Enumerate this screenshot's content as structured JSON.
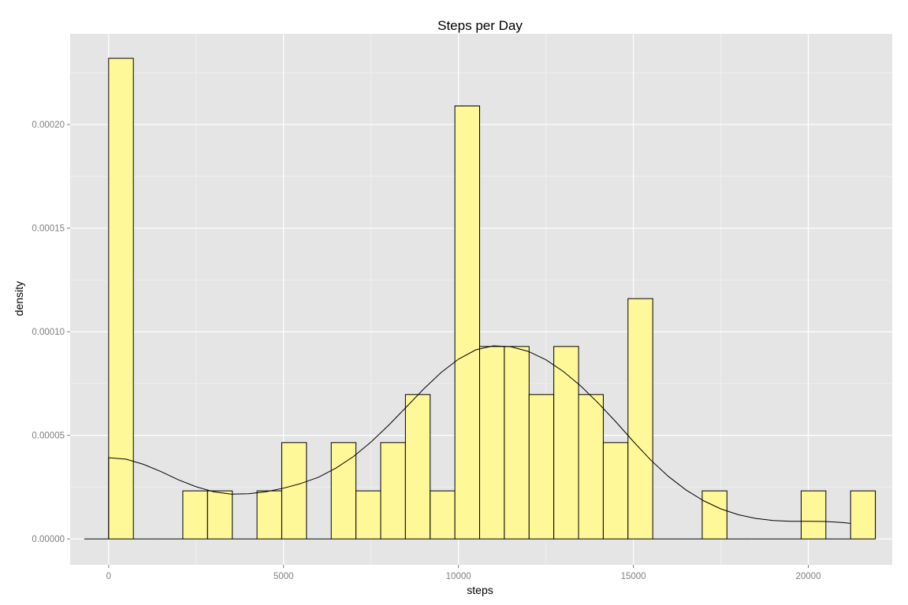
{
  "chart_data": {
    "type": "bar",
    "title": "Steps per Day",
    "xlabel": "steps",
    "ylabel": "density",
    "xlim": [
      -1100,
      22400
    ],
    "ylim": [
      -1.25e-05,
      0.0002438
    ],
    "x_ticks": [
      0,
      5000,
      10000,
      15000,
      20000
    ],
    "x_tick_labels": [
      "0",
      "5000",
      "10000",
      "15000",
      "20000"
    ],
    "y_ticks": [
      0,
      5e-05,
      0.0001,
      0.00015,
      0.0002
    ],
    "y_tick_labels": [
      "0.00000",
      "0.00005",
      "0.00010",
      "0.00015",
      "0.00020"
    ],
    "grid": true,
    "bin_width": 707,
    "series": [
      {
        "kind": "histogram",
        "bins": [
          {
            "x0": 0,
            "x1": 707,
            "density": 0.000232
          },
          {
            "x0": 707,
            "x1": 1414,
            "density": 0
          },
          {
            "x0": 1414,
            "x1": 2121,
            "density": 0
          },
          {
            "x0": 2121,
            "x1": 2828,
            "density": 2.32e-05
          },
          {
            "x0": 2828,
            "x1": 3535,
            "density": 2.32e-05
          },
          {
            "x0": 3535,
            "x1": 4242,
            "density": 0
          },
          {
            "x0": 4242,
            "x1": 4949,
            "density": 2.32e-05
          },
          {
            "x0": 4949,
            "x1": 5656,
            "density": 4.65e-05
          },
          {
            "x0": 5656,
            "x1": 6363,
            "density": 0
          },
          {
            "x0": 6363,
            "x1": 7070,
            "density": 4.65e-05
          },
          {
            "x0": 7070,
            "x1": 7777,
            "density": 2.32e-05
          },
          {
            "x0": 7777,
            "x1": 8484,
            "density": 4.65e-05
          },
          {
            "x0": 8484,
            "x1": 9191,
            "density": 6.97e-05
          },
          {
            "x0": 9191,
            "x1": 9898,
            "density": 2.32e-05
          },
          {
            "x0": 9898,
            "x1": 10605,
            "density": 0.000209
          },
          {
            "x0": 10605,
            "x1": 11312,
            "density": 9.29e-05
          },
          {
            "x0": 11312,
            "x1": 12019,
            "density": 9.29e-05
          },
          {
            "x0": 12019,
            "x1": 12726,
            "density": 6.97e-05
          },
          {
            "x0": 12726,
            "x1": 13433,
            "density": 9.29e-05
          },
          {
            "x0": 13433,
            "x1": 14140,
            "density": 6.97e-05
          },
          {
            "x0": 14140,
            "x1": 14847,
            "density": 4.65e-05
          },
          {
            "x0": 14847,
            "x1": 15554,
            "density": 0.000116
          },
          {
            "x0": 15554,
            "x1": 16261,
            "density": 0
          },
          {
            "x0": 16261,
            "x1": 16968,
            "density": 0
          },
          {
            "x0": 16968,
            "x1": 17675,
            "density": 2.32e-05
          },
          {
            "x0": 17675,
            "x1": 18382,
            "density": 0
          },
          {
            "x0": 18382,
            "x1": 19089,
            "density": 0
          },
          {
            "x0": 19089,
            "x1": 19796,
            "density": 0
          },
          {
            "x0": 19796,
            "x1": 20503,
            "density": 2.32e-05
          },
          {
            "x0": 20503,
            "x1": 21210,
            "density": 0
          },
          {
            "x0": 21210,
            "x1": 21917,
            "density": 2.32e-05
          }
        ]
      },
      {
        "kind": "density",
        "points": [
          [
            -700,
            0
          ],
          [
            0,
            0
          ],
          [
            0,
            3.92e-05
          ],
          [
            500,
            3.85e-05
          ],
          [
            1000,
            3.6e-05
          ],
          [
            1500,
            3.25e-05
          ],
          [
            2000,
            2.85e-05
          ],
          [
            2500,
            2.52e-05
          ],
          [
            3000,
            2.28e-05
          ],
          [
            3500,
            2.16e-05
          ],
          [
            4000,
            2.18e-05
          ],
          [
            4500,
            2.28e-05
          ],
          [
            5000,
            2.45e-05
          ],
          [
            5500,
            2.68e-05
          ],
          [
            6000,
            2.98e-05
          ],
          [
            6500,
            3.42e-05
          ],
          [
            7000,
            3.98e-05
          ],
          [
            7500,
            4.68e-05
          ],
          [
            8000,
            5.48e-05
          ],
          [
            8500,
            6.35e-05
          ],
          [
            9000,
            7.23e-05
          ],
          [
            9500,
            8.03e-05
          ],
          [
            10000,
            8.68e-05
          ],
          [
            10500,
            9.13e-05
          ],
          [
            11000,
            9.32e-05
          ],
          [
            11500,
            9.28e-05
          ],
          [
            12000,
            9.05e-05
          ],
          [
            12500,
            8.65e-05
          ],
          [
            13000,
            8.08e-05
          ],
          [
            13500,
            7.38e-05
          ],
          [
            14000,
            6.55e-05
          ],
          [
            14500,
            5.65e-05
          ],
          [
            15000,
            4.7e-05
          ],
          [
            15500,
            3.8e-05
          ],
          [
            16000,
            3.02e-05
          ],
          [
            16500,
            2.37e-05
          ],
          [
            17000,
            1.85e-05
          ],
          [
            17500,
            1.45e-05
          ],
          [
            18000,
            1.17e-05
          ],
          [
            18500,
            9.9e-06
          ],
          [
            19000,
            8.9e-06
          ],
          [
            19500,
            8.5e-06
          ],
          [
            20000,
            8.5e-06
          ],
          [
            20500,
            8.4e-06
          ],
          [
            21000,
            7.9e-06
          ],
          [
            21200,
            7.5e-06
          ]
        ]
      }
    ],
    "colors": {
      "panel": "#e5e5e5",
      "grid_major": "#ffffff",
      "grid_minor": "#f2f2f2",
      "bar_fill": "#fff899",
      "bar_stroke": "#000000",
      "density_line": "#000000"
    }
  }
}
